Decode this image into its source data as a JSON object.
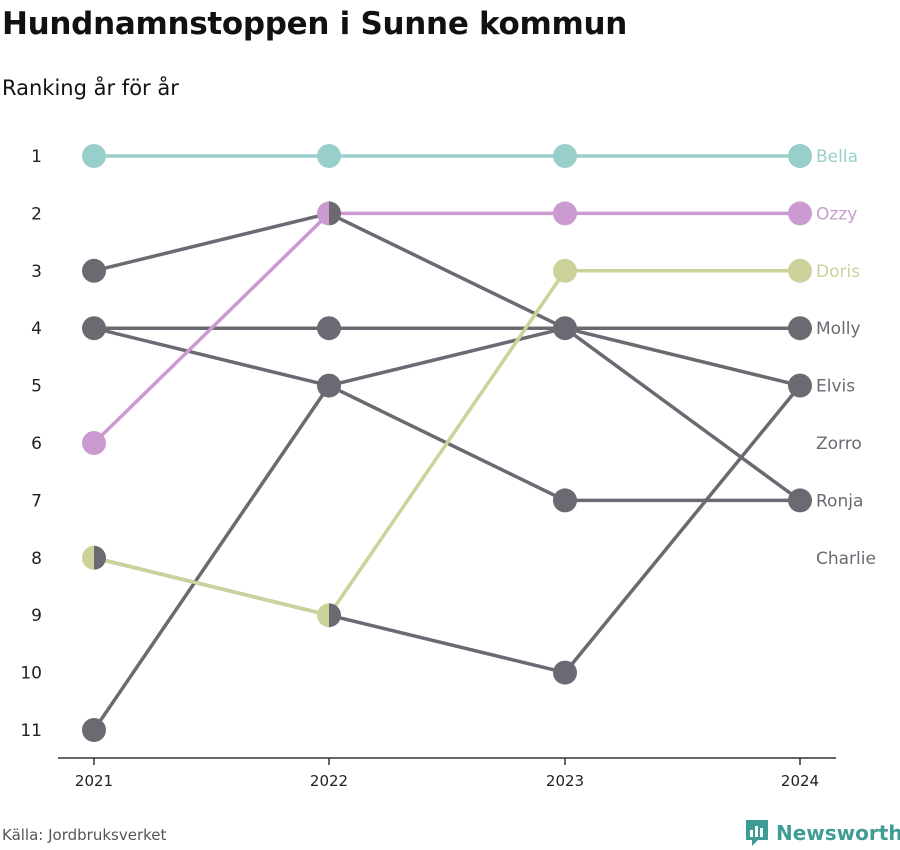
{
  "title": "Hundnamnstoppen i Sunne kommun",
  "subtitle": "Ranking år för år",
  "source": "Källa: Jordbruksverket",
  "brand": "Newsworthy",
  "colors": {
    "Bella": "#99cfcb",
    "Ozzy": "#cb9ad1",
    "Doris": "#cdd19a",
    "other": "#6b6a72",
    "brand": "#3f9c95"
  },
  "chart_data": {
    "type": "line",
    "chart_subtype": "bump",
    "x": [
      2021,
      2022,
      2023,
      2024
    ],
    "y_ticks": [
      1,
      2,
      3,
      4,
      5,
      6,
      7,
      8,
      9,
      10,
      11
    ],
    "y_axis": "rank (1 at top)",
    "grid": false,
    "series": [
      {
        "name": "Bella",
        "values": [
          1,
          1,
          1,
          1
        ],
        "highlight": true
      },
      {
        "name": "Ozzy",
        "values": [
          6,
          2,
          2,
          2
        ],
        "highlight": true
      },
      {
        "name": "Doris",
        "values": [
          8,
          9,
          3,
          3
        ],
        "highlight": true
      },
      {
        "name": "Molly",
        "values": [
          4,
          4,
          4,
          4
        ],
        "highlight": false
      },
      {
        "name": "Elvis",
        "values": [
          11,
          5,
          4,
          5
        ],
        "highlight": false
      },
      {
        "name": "Zorro",
        "values": [
          8,
          9,
          10,
          5
        ],
        "highlight": false
      },
      {
        "name": "Ronja",
        "values": [
          4,
          5,
          7,
          7
        ],
        "highlight": false
      },
      {
        "name": "Charlie",
        "values": [
          3,
          2,
          4,
          7
        ],
        "highlight": false
      }
    ],
    "end_labels": [
      "Bella",
      "Ozzy",
      "Doris",
      "Molly",
      "Elvis",
      "Zorro",
      "Ronja",
      "Charlie"
    ]
  }
}
